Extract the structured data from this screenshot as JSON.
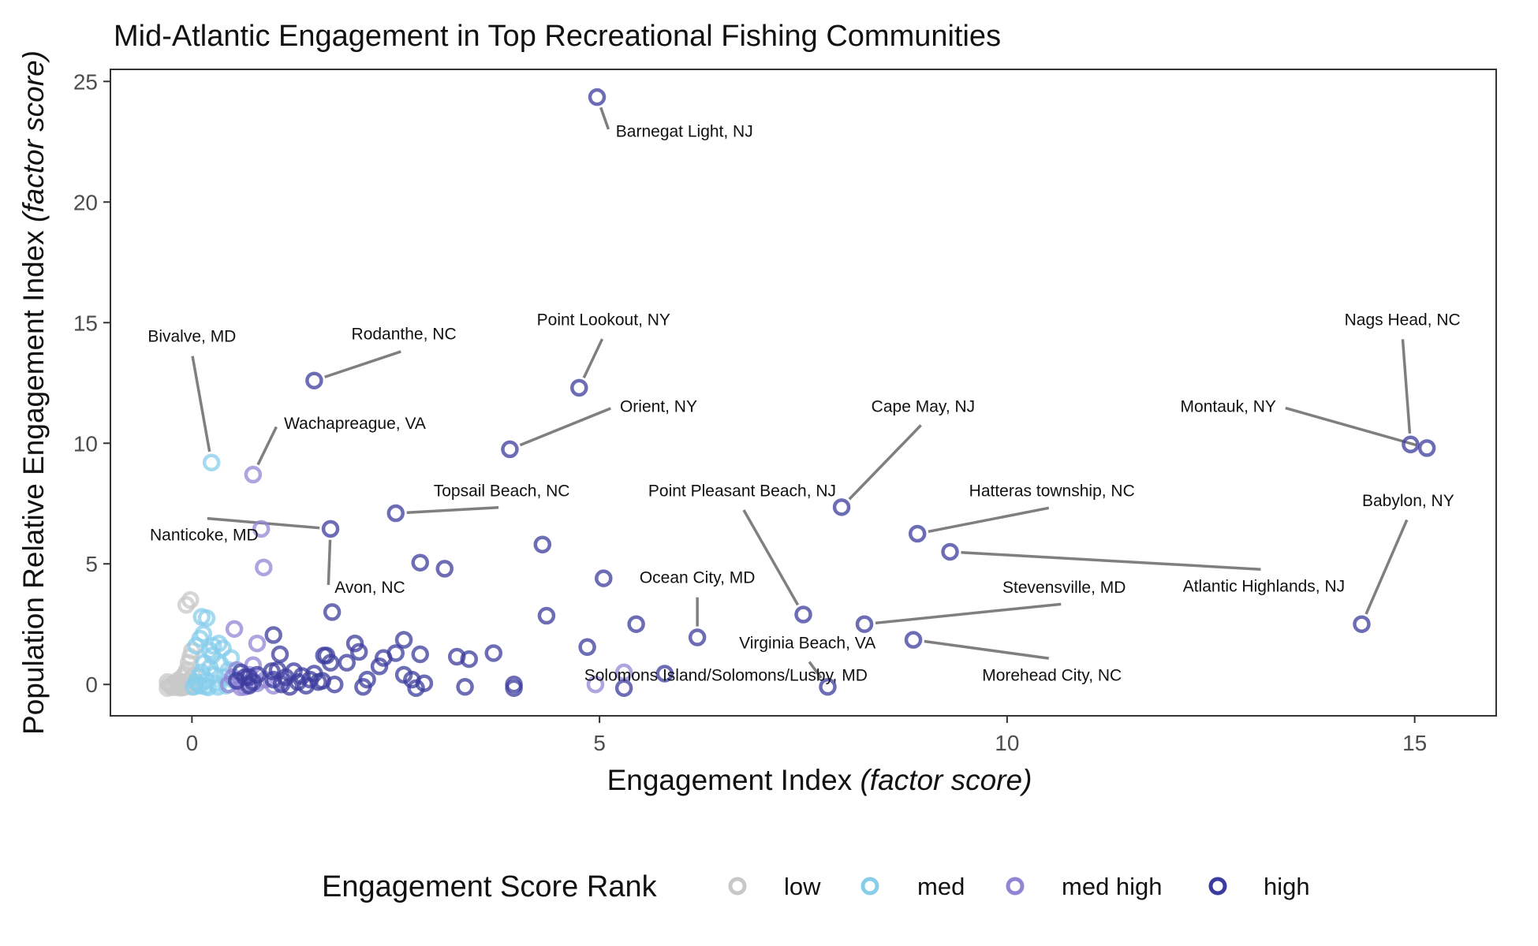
{
  "chart_data": {
    "type": "scatter",
    "title": "Mid-Atlantic Engagement in Top Recreational Fishing Communities",
    "xlabel_main": "Engagement Index ",
    "xlabel_italic": "(factor score)",
    "ylabel_main": "Population Relative Engagement Index ",
    "ylabel_italic": "(factor score)",
    "xlim": [
      -1,
      16
    ],
    "ylim": [
      -1.3,
      25.5
    ],
    "xticks": [
      0,
      5,
      10,
      15
    ],
    "yticks": [
      0,
      5,
      10,
      15,
      20,
      25
    ],
    "grid": false,
    "legend": {
      "title": "Engagement Score Rank",
      "position": "bottom",
      "entries": [
        {
          "key": "low",
          "label": "low",
          "color": "#c8c8c8"
        },
        {
          "key": "med",
          "label": "med",
          "color": "#87ceeb"
        },
        {
          "key": "medhigh",
          "label": "med high",
          "color": "#9385d6"
        },
        {
          "key": "high",
          "label": "high",
          "color": "#3c3c9e"
        }
      ]
    },
    "series": [
      {
        "name": "low",
        "color": "#c8c8c8",
        "points": [
          [
            -0.3,
            -0.15
          ],
          [
            -0.25,
            -0.05
          ],
          [
            -0.2,
            0.05
          ],
          [
            -0.15,
            -0.1
          ],
          [
            -0.1,
            0.1
          ],
          [
            -0.05,
            -0.05
          ],
          [
            -0.28,
            0.0
          ],
          [
            -0.22,
            -0.12
          ],
          [
            -0.18,
            0.15
          ],
          [
            -0.12,
            0.3
          ],
          [
            -0.08,
            0.45
          ],
          [
            -0.02,
            0.2
          ],
          [
            0.0,
            -0.1
          ],
          [
            -0.06,
            0.6
          ],
          [
            -0.04,
            0.9
          ],
          [
            -0.02,
            1.15
          ],
          [
            0.0,
            1.4
          ],
          [
            -0.3,
            0.1
          ],
          [
            -0.26,
            -0.08
          ],
          [
            -0.16,
            0.02
          ],
          [
            -0.1,
            -0.12
          ],
          [
            -0.03,
            0.05
          ],
          [
            0.02,
            0.35
          ],
          [
            -0.14,
            -0.14
          ],
          [
            -0.07,
            3.3
          ],
          [
            -0.02,
            3.5
          ]
        ]
      },
      {
        "name": "med",
        "color": "#87ceeb",
        "points": [
          [
            0.02,
            -0.1
          ],
          [
            0.05,
            0.1
          ],
          [
            0.08,
            0.3
          ],
          [
            0.1,
            -0.05
          ],
          [
            0.12,
            0.5
          ],
          [
            0.15,
            0.9
          ],
          [
            0.18,
            0.15
          ],
          [
            0.2,
            -0.12
          ],
          [
            0.22,
            0.7
          ],
          [
            0.25,
            1.2
          ],
          [
            0.28,
            0.4
          ],
          [
            0.3,
            0.05
          ],
          [
            0.32,
            -0.1
          ],
          [
            0.35,
            0.85
          ],
          [
            0.38,
            1.5
          ],
          [
            0.4,
            0.3
          ],
          [
            0.42,
            -0.05
          ],
          [
            0.45,
            0.6
          ],
          [
            0.48,
            1.1
          ],
          [
            0.5,
            0.2
          ],
          [
            0.05,
            1.6
          ],
          [
            0.1,
            1.9
          ],
          [
            0.14,
            2.1
          ],
          [
            0.18,
            2.75
          ],
          [
            0.12,
            2.8
          ],
          [
            0.26,
            1.6
          ],
          [
            0.33,
            1.7
          ],
          [
            0.22,
            1.4
          ],
          [
            0.08,
            0.0
          ],
          [
            0.16,
            -0.08
          ],
          [
            0.24,
            9.2
          ]
        ]
      },
      {
        "name": "med high",
        "color": "#9385d6",
        "points": [
          [
            0.45,
            0.0
          ],
          [
            0.5,
            0.3
          ],
          [
            0.55,
            0.6
          ],
          [
            0.6,
            0.1
          ],
          [
            0.65,
            -0.1
          ],
          [
            0.7,
            0.4
          ],
          [
            0.75,
            0.8
          ],
          [
            0.8,
            0.05
          ],
          [
            0.9,
            0.2
          ],
          [
            1.0,
            -0.05
          ],
          [
            1.1,
            0.15
          ],
          [
            0.52,
            2.3
          ],
          [
            0.8,
            1.7
          ],
          [
            0.85,
            6.45
          ],
          [
            0.88,
            4.85
          ],
          [
            0.75,
            8.7
          ],
          [
            4.95,
            0.0
          ],
          [
            5.3,
            0.5
          ],
          [
            0.6,
            -0.12
          ],
          [
            0.7,
            0.0
          ]
        ]
      },
      {
        "name": "high",
        "color": "#3c3c9e",
        "points": [
          [
            0.55,
            0.15
          ],
          [
            0.6,
            0.5
          ],
          [
            0.65,
            0.3
          ],
          [
            0.7,
            -0.05
          ],
          [
            0.75,
            0.1
          ],
          [
            0.8,
            0.4
          ],
          [
            1.0,
            0.2
          ],
          [
            1.05,
            0.6
          ],
          [
            1.1,
            0.0
          ],
          [
            1.15,
            0.3
          ],
          [
            1.2,
            -0.1
          ],
          [
            1.25,
            0.55
          ],
          [
            1.3,
            0.1
          ],
          [
            1.35,
            0.35
          ],
          [
            1.4,
            -0.05
          ],
          [
            1.45,
            0.2
          ],
          [
            1.5,
            0.45
          ],
          [
            1.55,
            0.1
          ],
          [
            1.6,
            0.15
          ],
          [
            1.65,
            1.2
          ],
          [
            1.7,
            0.9
          ],
          [
            1.75,
            0.0
          ],
          [
            1.0,
            2.05
          ],
          [
            1.08,
            1.25
          ],
          [
            0.98,
            0.55
          ],
          [
            1.62,
            1.2
          ],
          [
            1.72,
            3.0
          ],
          [
            2.0,
            1.7
          ],
          [
            2.05,
            1.35
          ],
          [
            2.1,
            -0.1
          ],
          [
            2.15,
            0.2
          ],
          [
            1.9,
            0.9
          ],
          [
            2.3,
            0.75
          ],
          [
            2.35,
            1.1
          ],
          [
            2.5,
            1.3
          ],
          [
            2.6,
            1.85
          ],
          [
            2.6,
            0.4
          ],
          [
            2.7,
            0.2
          ],
          [
            2.75,
            -0.15
          ],
          [
            2.8,
            1.25
          ],
          [
            2.85,
            0.05
          ],
          [
            2.8,
            5.05
          ],
          [
            3.1,
            4.8
          ],
          [
            3.25,
            1.15
          ],
          [
            3.35,
            -0.1
          ],
          [
            3.4,
            1.05
          ],
          [
            3.7,
            1.3
          ],
          [
            3.95,
            0.0
          ],
          [
            3.95,
            -0.15
          ],
          [
            4.3,
            5.8
          ],
          [
            4.35,
            2.85
          ],
          [
            4.85,
            1.55
          ],
          [
            5.05,
            4.4
          ],
          [
            5.3,
            -0.15
          ],
          [
            5.45,
            2.5
          ],
          [
            5.8,
            0.45
          ],
          [
            6.2,
            1.95
          ],
          [
            0.7,
            0.3
          ],
          [
            1.7,
            6.45
          ],
          [
            2.5,
            7.1
          ],
          [
            3.9,
            9.75
          ],
          [
            1.5,
            12.6
          ],
          [
            4.75,
            12.3
          ],
          [
            4.97,
            24.35
          ],
          [
            7.5,
            2.9
          ],
          [
            7.97,
            7.35
          ],
          [
            7.8,
            -0.1
          ],
          [
            8.25,
            2.5
          ],
          [
            8.85,
            1.85
          ],
          [
            8.9,
            6.25
          ],
          [
            9.3,
            5.5
          ],
          [
            14.35,
            2.5
          ],
          [
            14.95,
            9.95
          ],
          [
            15.15,
            9.8
          ]
        ]
      }
    ],
    "annotations": [
      {
        "text": "Barnegat Light, NJ",
        "x": 4.97,
        "y": 24.35,
        "lx": 5.2,
        "ly": 22.7,
        "anchor": "start"
      },
      {
        "text": "Bivalve, MD",
        "x": 0.24,
        "y": 9.2,
        "lx": 0.0,
        "ly": 14.2,
        "anchor": "middle"
      },
      {
        "text": "Rodanthe, NC",
        "x": 1.5,
        "y": 12.6,
        "lx": 2.6,
        "ly": 14.3,
        "anchor": "middle"
      },
      {
        "text": "Point Lookout, NY",
        "x": 4.75,
        "y": 12.3,
        "lx": 5.05,
        "ly": 14.9,
        "anchor": "middle"
      },
      {
        "text": "Nags Head, NC",
        "x": 14.95,
        "y": 9.95,
        "lx": 14.85,
        "ly": 14.9,
        "anchor": "middle"
      },
      {
        "text": "Orient, NY",
        "x": 3.9,
        "y": 9.75,
        "lx": 5.25,
        "ly": 11.3,
        "anchor": "start"
      },
      {
        "text": "Wachapreague, VA",
        "x": 0.75,
        "y": 8.7,
        "lx": 1.13,
        "ly": 10.6,
        "anchor": "start"
      },
      {
        "text": "Cape May, NJ",
        "x": 7.97,
        "y": 7.35,
        "lx": 8.97,
        "ly": 11.3,
        "anchor": "middle"
      },
      {
        "text": "Montauk, NY",
        "x": 15.15,
        "y": 9.8,
        "lx": 13.3,
        "ly": 11.3,
        "anchor": "end"
      },
      {
        "text": "Topsail Beach, NC",
        "x": 2.5,
        "y": 7.1,
        "lx": 3.8,
        "ly": 7.8,
        "anchor": "middle"
      },
      {
        "text": "Point Pleasant Beach, NJ",
        "x": 7.5,
        "y": 2.9,
        "lx": 6.75,
        "ly": 7.8,
        "anchor": "middle"
      },
      {
        "text": "Hatteras township, NC",
        "x": 8.9,
        "y": 6.25,
        "lx": 10.55,
        "ly": 7.8,
        "anchor": "middle"
      },
      {
        "text": "Babylon, NY",
        "x": 14.35,
        "y": 2.5,
        "lx": 14.92,
        "ly": 7.4,
        "anchor": "middle"
      },
      {
        "text": "Nanticoke, MD",
        "x": 1.7,
        "y": 6.45,
        "lx": 0.15,
        "ly": 5.98,
        "anchor": "middle"
      },
      {
        "text": "Avon, NC",
        "x": 1.7,
        "y": 6.45,
        "lx": 1.75,
        "ly": 3.8,
        "anchor": "start"
      },
      {
        "text": "Ocean City, MD",
        "x": 6.2,
        "y": 1.95,
        "lx": 6.2,
        "ly": 4.2,
        "anchor": "middle"
      },
      {
        "text": "Atlantic Highlands, NJ",
        "x": 9.3,
        "y": 5.5,
        "lx": 13.15,
        "ly": 3.85,
        "anchor": "middle"
      },
      {
        "text": "Stevensville, MD",
        "x": 8.25,
        "y": 2.5,
        "lx": 10.7,
        "ly": 3.8,
        "anchor": "middle"
      },
      {
        "text": "Virginia Beach, VA",
        "x": 7.8,
        "y": -0.1,
        "lx": 7.55,
        "ly": 1.5,
        "anchor": "middle"
      },
      {
        "text": "Morehead City, NC",
        "x": 8.85,
        "y": 1.85,
        "lx": 10.55,
        "ly": 0.15,
        "anchor": "middle"
      },
      {
        "text": "Solomons Island/Solomons/Lusby, MD",
        "x": 4.95,
        "y": 0.0,
        "lx": 6.55,
        "ly": 0.15,
        "anchor": "middle",
        "noline": true
      }
    ]
  }
}
